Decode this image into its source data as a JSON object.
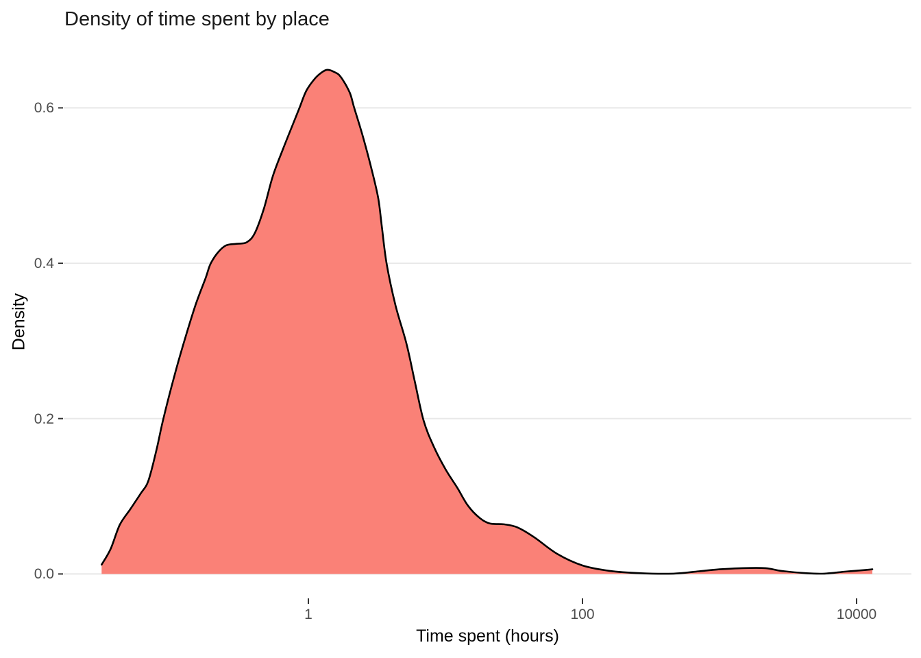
{
  "title": "Density of time spent by place",
  "chart_data": {
    "type": "area",
    "subtype": "density-curve",
    "title": "Density of time spent by place",
    "xlabel": "Time spent (hours)",
    "ylabel": "Density",
    "x_scale": "log10",
    "x_ticks": [
      1,
      100,
      10000
    ],
    "x_tick_labels": [
      "1",
      "100",
      "10000"
    ],
    "y_ticks": [
      0.0,
      0.2,
      0.4,
      0.6
    ],
    "y_tick_labels": [
      "0.0",
      "0.2",
      "0.4",
      "0.6"
    ],
    "xlim_log10": [
      -1.785,
      4.4
    ],
    "ylim": [
      -0.0305,
      0.6815
    ],
    "grid": "horizontal-major-only",
    "legend": "none",
    "fill_color": "#FA8177",
    "line_color": "#000000",
    "gridline_color": "#E8E8E8",
    "tick_color": "#333333",
    "peak": {
      "hours": 1.38,
      "density": 0.649
    },
    "points_hours_density": [
      [
        0.031,
        0.012
      ],
      [
        0.036,
        0.032
      ],
      [
        0.042,
        0.063
      ],
      [
        0.05,
        0.083
      ],
      [
        0.06,
        0.104
      ],
      [
        0.068,
        0.12
      ],
      [
        0.078,
        0.16
      ],
      [
        0.087,
        0.198
      ],
      [
        0.106,
        0.257
      ],
      [
        0.123,
        0.297
      ],
      [
        0.15,
        0.346
      ],
      [
        0.178,
        0.381
      ],
      [
        0.193,
        0.399
      ],
      [
        0.219,
        0.414
      ],
      [
        0.251,
        0.423
      ],
      [
        0.299,
        0.425
      ],
      [
        0.355,
        0.427
      ],
      [
        0.407,
        0.439
      ],
      [
        0.473,
        0.47
      ],
      [
        0.55,
        0.512
      ],
      [
        0.653,
        0.547
      ],
      [
        0.767,
        0.578
      ],
      [
        0.861,
        0.6
      ],
      [
        0.966,
        0.622
      ],
      [
        1.12,
        0.638
      ],
      [
        1.26,
        0.646
      ],
      [
        1.38,
        0.649
      ],
      [
        1.55,
        0.646
      ],
      [
        1.72,
        0.64
      ],
      [
        2.0,
        0.62
      ],
      [
        2.16,
        0.6
      ],
      [
        2.51,
        0.562
      ],
      [
        2.92,
        0.518
      ],
      [
        3.24,
        0.483
      ],
      [
        3.43,
        0.448
      ],
      [
        3.72,
        0.4
      ],
      [
        4.32,
        0.346
      ],
      [
        5.19,
        0.297
      ],
      [
        5.96,
        0.249
      ],
      [
        6.92,
        0.198
      ],
      [
        8.22,
        0.164
      ],
      [
        10.0,
        0.135
      ],
      [
        12.2,
        0.111
      ],
      [
        14.6,
        0.088
      ],
      [
        17.8,
        0.072
      ],
      [
        21.1,
        0.065
      ],
      [
        26.6,
        0.064
      ],
      [
        33.5,
        0.06
      ],
      [
        44.7,
        0.047
      ],
      [
        65.3,
        0.026
      ],
      [
        100,
        0.011
      ],
      [
        158,
        0.004
      ],
      [
        266,
        0.001
      ],
      [
        462,
        0.0005
      ],
      [
        708,
        0.0035
      ],
      [
        1000,
        0.006
      ],
      [
        1462,
        0.0075
      ],
      [
        2163,
        0.0075
      ],
      [
        2818,
        0.004
      ],
      [
        4315,
        0.001
      ],
      [
        5821,
        0.0005
      ],
      [
        8222,
        0.003
      ],
      [
        11220,
        0.005
      ],
      [
        13032,
        0.006
      ]
    ]
  }
}
